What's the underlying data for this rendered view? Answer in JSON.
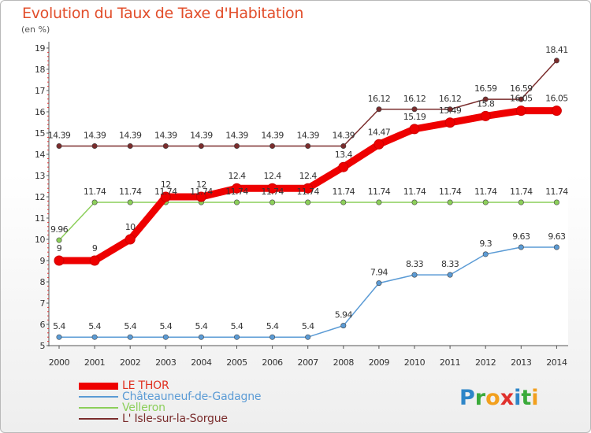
{
  "page": {
    "title": "Evolution du Taux de Taxe d'Habitation",
    "subtitle": "(en %)",
    "logo_letters": [
      {
        "ch": "P",
        "color": "#2e86c8"
      },
      {
        "ch": "r",
        "color": "#3aaa3a"
      },
      {
        "ch": "o",
        "color": "#f2a01e"
      },
      {
        "ch": "x",
        "color": "#e0302c"
      },
      {
        "ch": "i",
        "color": "#2e86c8"
      },
      {
        "ch": "t",
        "color": "#3aaa3a"
      },
      {
        "ch": "i",
        "color": "#f2a01e"
      }
    ]
  },
  "chart_data": {
    "type": "line",
    "title": "Evolution du Taux de Taxe d'Habitation",
    "ylabel": "(en %)",
    "xlabel": "",
    "categories": [
      "2000",
      "2001",
      "2002",
      "2003",
      "2004",
      "2005",
      "2006",
      "2007",
      "2008",
      "2009",
      "2010",
      "2011",
      "2012",
      "2013",
      "2014"
    ],
    "ylim": [
      5,
      19
    ],
    "yticks": [
      "5",
      "6",
      "7",
      "8",
      "9",
      "10",
      "11",
      "12",
      "13",
      "14",
      "15",
      "16",
      "17",
      "18",
      "19"
    ],
    "grid": false,
    "legend": "bottom-left",
    "series": [
      {
        "name": "LE THOR",
        "color": "#ee0000",
        "values": [
          9,
          9,
          10,
          12,
          12,
          12.4,
          12.4,
          12.4,
          13.4,
          14.47,
          15.19,
          15.49,
          15.8,
          16.05,
          16.05
        ],
        "labels": [
          "9",
          "9",
          "10",
          "12",
          "12",
          "12.4",
          "12.4",
          "12.4",
          "13.4",
          "14.47",
          "15.19",
          "15.49",
          "15.8",
          "16.05",
          "16.05"
        ]
      },
      {
        "name": "Châteauneuf-de-Gadagne",
        "color": "#5b9bd5",
        "values": [
          5.4,
          5.4,
          5.4,
          5.4,
          5.4,
          5.4,
          5.4,
          5.4,
          5.94,
          7.94,
          8.33,
          8.33,
          9.3,
          9.63,
          9.63
        ],
        "labels": [
          "5.4",
          "5.4",
          "5.4",
          "5.4",
          "5.4",
          "5.4",
          "5.4",
          "5.4",
          "5.94",
          "7.94",
          "8.33",
          "8.33",
          "9.3",
          "9.63",
          "9.63"
        ]
      },
      {
        "name": "Velleron",
        "color": "#8ccf5a",
        "values": [
          9.96,
          11.74,
          11.74,
          11.74,
          11.74,
          11.74,
          11.74,
          11.74,
          11.74,
          11.74,
          11.74,
          11.74,
          11.74,
          11.74,
          11.74
        ],
        "labels": [
          "9.96",
          "11.74",
          "11.74",
          "11.74",
          "11.74",
          "11.74",
          "11.74",
          "11.74",
          "11.74",
          "11.74",
          "11.74",
          "11.74",
          "11.74",
          "11.74",
          "11.74"
        ]
      },
      {
        "name": "L' Isle-sur-la-Sorgue",
        "color": "#7a2c2c",
        "values": [
          14.39,
          14.39,
          14.39,
          14.39,
          14.39,
          14.39,
          14.39,
          14.39,
          14.39,
          16.12,
          16.12,
          16.12,
          16.59,
          16.59,
          18.41
        ],
        "labels": [
          "14.39",
          "14.39",
          "14.39",
          "14.39",
          "14.39",
          "14.39",
          "14.39",
          "14.39",
          "14.39",
          "16.12",
          "16.12",
          "16.12",
          "16.59",
          "16.59",
          "18.41"
        ]
      }
    ]
  }
}
